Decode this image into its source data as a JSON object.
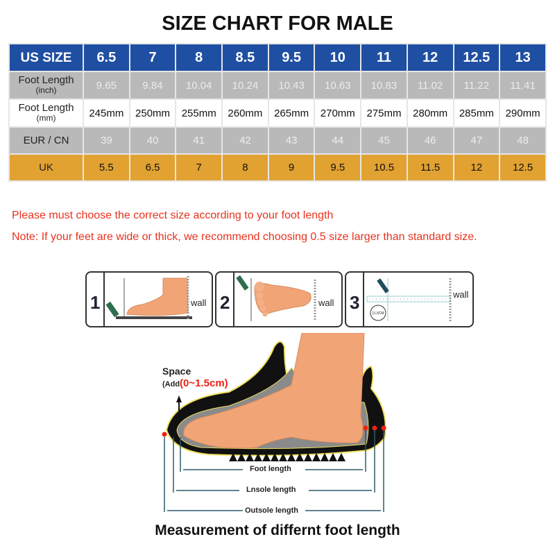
{
  "title": "SIZE CHART FOR MALE",
  "table": {
    "header": {
      "label": "US SIZE",
      "values": [
        "6.5",
        "7",
        "8",
        "8.5",
        "9.5",
        "10",
        "11",
        "12",
        "12.5",
        "13"
      ]
    },
    "rows": [
      {
        "label": "Foot Length",
        "sublabel": "(inch)",
        "values": [
          "9.65",
          "9.84",
          "10.04",
          "10.24",
          "10.43",
          "10.63",
          "10.83",
          "11.02",
          "11.22",
          "11.41"
        ]
      },
      {
        "label": "Foot Length",
        "sublabel": "(mm)",
        "values": [
          "245mm",
          "250mm",
          "255mm",
          "260mm",
          "265mm",
          "270mm",
          "275mm",
          "280mm",
          "285mm",
          "290mm"
        ]
      },
      {
        "label": "EUR / CN",
        "values": [
          "39",
          "40",
          "41",
          "42",
          "43",
          "44",
          "45",
          "46",
          "47",
          "48"
        ]
      },
      {
        "label": "UK",
        "values": [
          "5.5",
          "6.5",
          "7",
          "8",
          "9",
          "9.5",
          "10.5",
          "11.5",
          "12",
          "12.5"
        ]
      }
    ]
  },
  "notes": {
    "line1": "Please must choose the correct size  according to your foot length",
    "line2": "Note: If your feet are wide or thick, we recommend choosing 0.5 size larger than standard size."
  },
  "steps": [
    {
      "number": "1",
      "label": "wall"
    },
    {
      "number": "2",
      "label": "wall"
    },
    {
      "number": "3",
      "label": "wall",
      "ruler_mark": "11.5CM"
    }
  ],
  "diagram": {
    "space_label": "Space",
    "add_prefix": "(Add",
    "add_value": "(0~1.5cm)",
    "foot_length": "Foot length",
    "insole_length": "Lnsole length",
    "outsole_length": "Outsole length",
    "caption": "Measurement of differnt foot length"
  },
  "colors": {
    "header_blue": "#1f4fa2",
    "gray_row": "#b9b9b9",
    "uk_orange": "#e1a231",
    "note_red": "#e8321e",
    "skin": "#f1a577"
  }
}
